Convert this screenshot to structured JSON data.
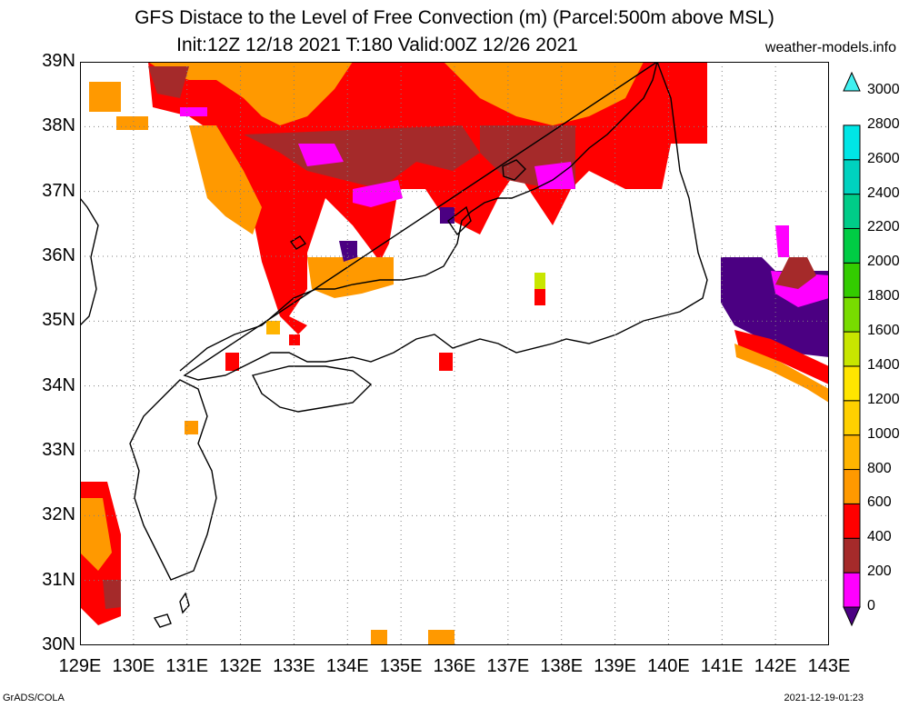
{
  "title_line1": "GFS Distace to the Level of Free Convection (m) (Parcel:500m above MSL)",
  "title_line2": "Init:12Z 12/18 2021 T:180 Valid:00Z 12/26 2021",
  "website": "weather-models.info",
  "footer_left": "GrADS/COLA",
  "footer_right": "2021-12-19-01:23",
  "lat_labels": [
    "39N",
    "38N",
    "37N",
    "36N",
    "35N",
    "34N",
    "33N",
    "32N",
    "31N",
    "30N"
  ],
  "lon_labels": [
    "129E",
    "130E",
    "131E",
    "132E",
    "133E",
    "134E",
    "135E",
    "136E",
    "137E",
    "138E",
    "139E",
    "140E",
    "141E",
    "142E",
    "143E"
  ],
  "colorbar": {
    "labels": [
      "3000",
      "2800",
      "2600",
      "2400",
      "2200",
      "2000",
      "1800",
      "1600",
      "1400",
      "1200",
      "1000",
      "800",
      "600",
      "400",
      "200",
      "0"
    ],
    "colors_bottom_to_top": [
      "#4b0082",
      "#ff00ff",
      "#a52a2a",
      "#ff0000",
      "#ff9900",
      "#ffb400",
      "#ffd000",
      "#ffe500",
      "#c8e600",
      "#78dc00",
      "#33cc00",
      "#00cc44",
      "#00cc88",
      "#00d2bf",
      "#00e6e6",
      "#40f0f0"
    ]
  },
  "field_colors": {
    "purple": "#4b0082",
    "magenta": "#ff00ff",
    "brown": "#a52a2a",
    "red": "#ff0000",
    "orange": "#ff9900",
    "gold": "#ffb400",
    "lime": "#c8e600"
  }
}
